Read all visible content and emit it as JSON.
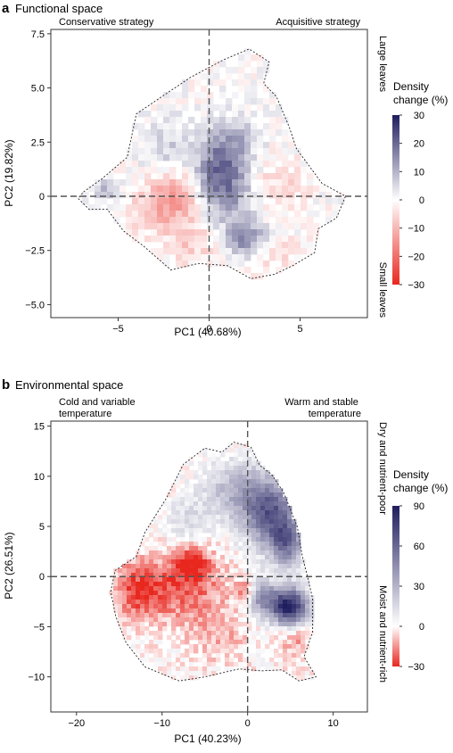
{
  "panels": [
    {
      "letter": "a",
      "title": "Functional space",
      "corner_left": [
        "Conservative strategy"
      ],
      "corner_right": [
        "Acquisitive strategy"
      ],
      "side_top": "Large leaves",
      "side_bottom": "Small leaves",
      "legend_title": [
        "Density",
        "change (%)"
      ]
    },
    {
      "letter": "b",
      "title": "Environmental space",
      "corner_left": [
        "Cold and variable",
        "temperature"
      ],
      "corner_right": [
        "Warm and stable",
        "temperature"
      ],
      "side_top": "Dry and nutrient-poor",
      "side_bottom": "Moist and nutrient-rich",
      "legend_title": [
        "Density",
        "change (%)"
      ]
    }
  ],
  "colors": {
    "positive": "#1f1d5e",
    "neutral": "#ffffff",
    "negative": "#e8271f",
    "frame": "#333333",
    "guide": "#555555"
  },
  "chart_data": [
    {
      "type": "heatmap",
      "xlabel": "PC1 (40.68%)",
      "ylabel": "PC2 (19.82%)",
      "xlim": [
        -8.7,
        8.7
      ],
      "ylim": [
        -5.6,
        7.7
      ],
      "xticks": [
        -5,
        0,
        5
      ],
      "yticks": [
        -5.0,
        -2.5,
        0,
        2.5,
        5.0,
        7.5
      ],
      "ytick_labels": [
        "−5.0",
        "−2.5",
        "0",
        "2.5",
        "5.0",
        "7.5"
      ],
      "xtick_labels": [
        "−5",
        "0",
        "5"
      ],
      "colorbar": {
        "min": -30,
        "max": 30,
        "ticks": [
          30,
          20,
          10,
          0,
          -10,
          -20,
          -30
        ],
        "tick_labels": [
          "30",
          "20",
          "10",
          "0",
          "−10",
          "−20",
          "−30"
        ]
      },
      "reference_lines": {
        "x": 0,
        "y": 0
      },
      "outline": [
        [
          -6.9,
          0.2
        ],
        [
          -5.9,
          0.8
        ],
        [
          -4.5,
          1.8
        ],
        [
          -4.0,
          3.8
        ],
        [
          -2.6,
          4.6
        ],
        [
          -1.0,
          5.5
        ],
        [
          0.8,
          6.3
        ],
        [
          2.2,
          6.8
        ],
        [
          3.3,
          6.2
        ],
        [
          3.0,
          5.2
        ],
        [
          3.7,
          4.6
        ],
        [
          4.4,
          3.2
        ],
        [
          4.8,
          2.2
        ],
        [
          5.5,
          1.4
        ],
        [
          6.2,
          0.6
        ],
        [
          7.5,
          0.0
        ],
        [
          7.0,
          -1.0
        ],
        [
          6.0,
          -1.5
        ],
        [
          5.8,
          -2.6
        ],
        [
          4.6,
          -3.2
        ],
        [
          3.6,
          -3.6
        ],
        [
          2.3,
          -3.8
        ],
        [
          1.0,
          -3.2
        ],
        [
          -0.6,
          -3.1
        ],
        [
          -2.1,
          -3.4
        ],
        [
          -3.6,
          -2.3
        ],
        [
          -4.7,
          -1.6
        ],
        [
          -5.6,
          -0.6
        ],
        [
          -6.6,
          -0.6
        ],
        [
          -7.2,
          -0.1
        ]
      ],
      "hotspots": [
        {
          "x": -1.6,
          "y": 0.0,
          "change": -14,
          "sx": 0.9,
          "sy": 0.7
        },
        {
          "x": -3.0,
          "y": -0.6,
          "change": -8,
          "sx": 1.0,
          "sy": 0.8
        },
        {
          "x": 0.8,
          "y": 0.2,
          "change": 16,
          "sx": 1.2,
          "sy": 0.9
        },
        {
          "x": 0.6,
          "y": 1.6,
          "change": 12,
          "sx": 0.9,
          "sy": 0.8
        },
        {
          "x": 2.0,
          "y": -2.0,
          "change": 18,
          "sx": 0.8,
          "sy": 0.6
        },
        {
          "x": 1.3,
          "y": 2.6,
          "change": 9,
          "sx": 1.0,
          "sy": 0.8
        },
        {
          "x": 3.6,
          "y": 0.5,
          "change": -6,
          "sx": 1.2,
          "sy": 0.9
        },
        {
          "x": -1.0,
          "y": -2.0,
          "change": -7,
          "sx": 1.0,
          "sy": 0.7
        },
        {
          "x": -5.7,
          "y": 0.3,
          "change": 8,
          "sx": 0.6,
          "sy": 0.4
        },
        {
          "x": 3.0,
          "y": -2.6,
          "change": -5,
          "sx": 1.4,
          "sy": 0.6
        },
        {
          "x": -2.2,
          "y": 2.4,
          "change": 6,
          "sx": 1.0,
          "sy": 0.8
        }
      ]
    },
    {
      "type": "heatmap",
      "xlabel": "PC1 (40.23%)",
      "ylabel": "PC2 (26.51%)",
      "xlim": [
        -23,
        14
      ],
      "ylim": [
        -13.5,
        15.5
      ],
      "xticks": [
        -20,
        -10,
        0,
        10
      ],
      "yticks": [
        -10,
        -5,
        0,
        5,
        10,
        15
      ],
      "xtick_labels": [
        "−20",
        "−10",
        "0",
        "10"
      ],
      "ytick_labels": [
        "−10",
        "−5",
        "0",
        "5",
        "10",
        "15"
      ],
      "colorbar": {
        "min": -30,
        "max": 90,
        "ticks": [
          90,
          60,
          30,
          0,
          -30
        ],
        "tick_labels": [
          "90",
          "60",
          "30",
          "0",
          "−30"
        ]
      },
      "reference_lines": {
        "x": 0,
        "y": 0
      },
      "outline": [
        [
          -16.0,
          -1.5
        ],
        [
          -15.5,
          0.6
        ],
        [
          -13.0,
          2.0
        ],
        [
          -12.0,
          4.4
        ],
        [
          -9.5,
          7.8
        ],
        [
          -7.5,
          11.2
        ],
        [
          -5.0,
          12.8
        ],
        [
          -3.0,
          12.4
        ],
        [
          -1.6,
          13.4
        ],
        [
          0.4,
          12.9
        ],
        [
          1.4,
          11.1
        ],
        [
          2.8,
          10.2
        ],
        [
          4.2,
          8.4
        ],
        [
          5.8,
          5.0
        ],
        [
          6.4,
          2.0
        ],
        [
          7.0,
          0.0
        ],
        [
          7.6,
          -2.2
        ],
        [
          7.6,
          -5.5
        ],
        [
          6.6,
          -8.0
        ],
        [
          8.0,
          -10.0
        ],
        [
          6.0,
          -10.4
        ],
        [
          4.0,
          -9.3
        ],
        [
          1.6,
          -9.4
        ],
        [
          -1.0,
          -9.2
        ],
        [
          -5.0,
          -10.0
        ],
        [
          -8.0,
          -10.4
        ],
        [
          -12.0,
          -9.0
        ],
        [
          -14.2,
          -6.6
        ],
        [
          -15.4,
          -4.0
        ]
      ],
      "hotspots": [
        {
          "x": 4.8,
          "y": -3.0,
          "change": 90,
          "sx": 1.6,
          "sy": 1.3
        },
        {
          "x": 2.8,
          "y": 6.2,
          "change": 60,
          "sx": 2.2,
          "sy": 2.3
        },
        {
          "x": 4.6,
          "y": 3.2,
          "change": 45,
          "sx": 1.4,
          "sy": 1.6
        },
        {
          "x": -1.0,
          "y": 8.5,
          "change": 30,
          "sx": 2.8,
          "sy": 2.0
        },
        {
          "x": 1.4,
          "y": -2.0,
          "change": 40,
          "sx": 1.3,
          "sy": 1.2
        },
        {
          "x": -8.0,
          "y": -1.2,
          "change": -22,
          "sx": 4.0,
          "sy": 2.2
        },
        {
          "x": -13.0,
          "y": -1.5,
          "change": -18,
          "sx": 2.0,
          "sy": 2.0
        },
        {
          "x": -6.5,
          "y": 1.5,
          "change": -26,
          "sx": 1.5,
          "sy": 1.2
        },
        {
          "x": -0.2,
          "y": -1.6,
          "change": -30,
          "sx": 0.8,
          "sy": 0.8
        },
        {
          "x": 5.5,
          "y": -6.0,
          "change": -14,
          "sx": 1.6,
          "sy": 1.4
        },
        {
          "x": -3.5,
          "y": -6.0,
          "change": -10,
          "sx": 2.6,
          "sy": 1.8
        },
        {
          "x": -7.0,
          "y": 5.5,
          "change": 14,
          "sx": 1.8,
          "sy": 1.6
        }
      ]
    }
  ]
}
